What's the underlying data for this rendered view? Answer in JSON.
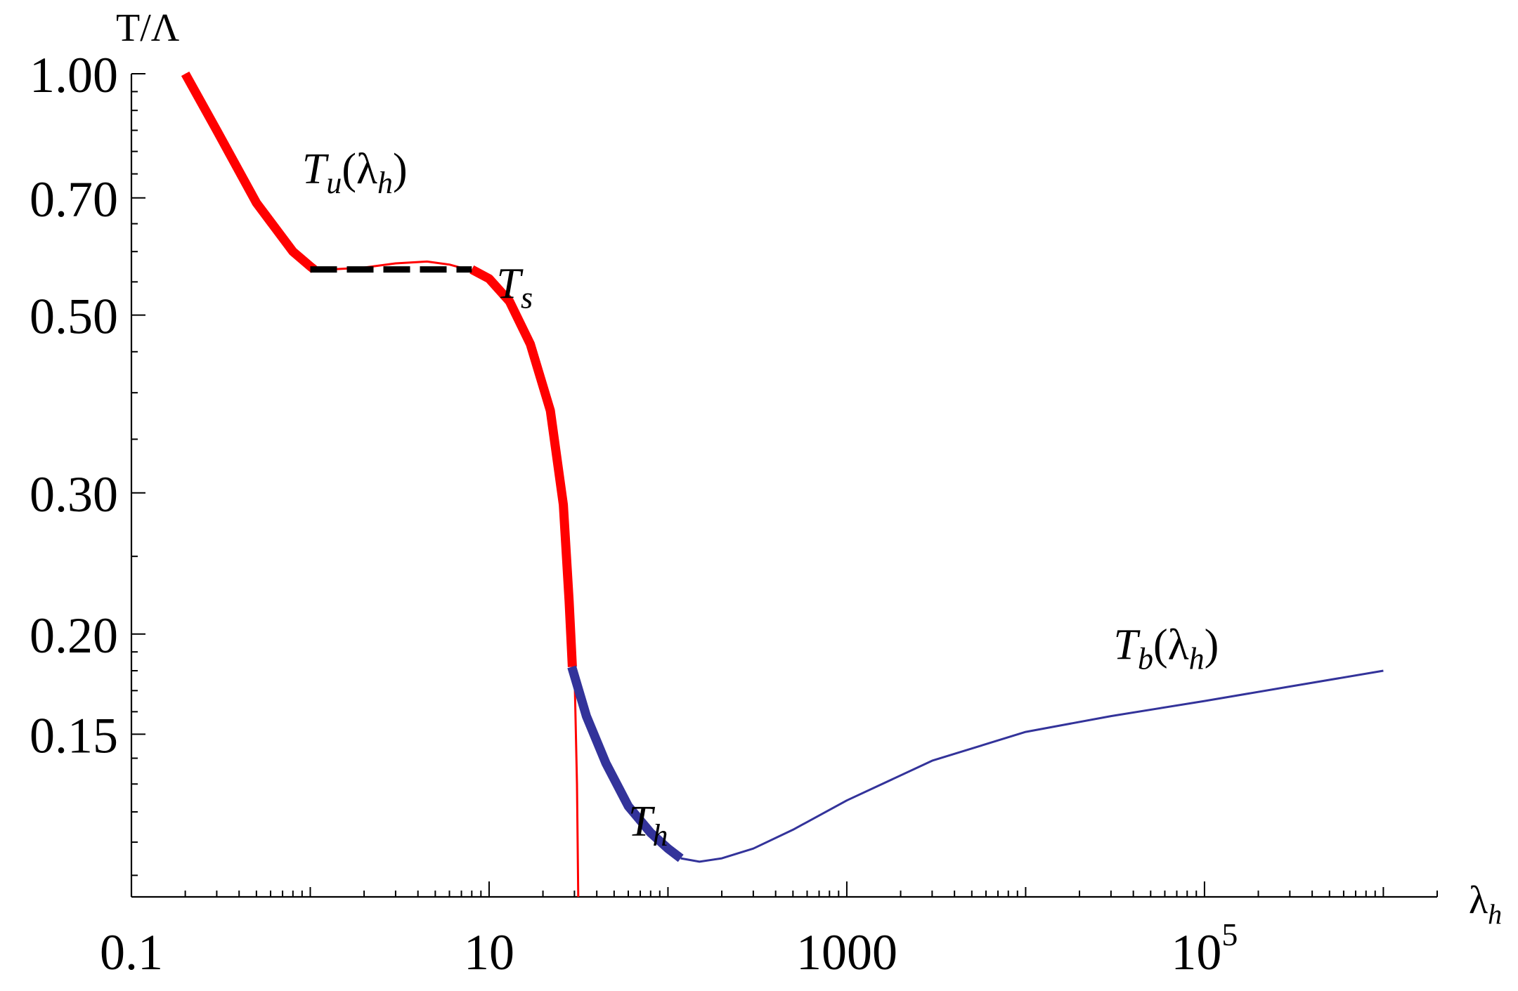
{
  "chart_data": {
    "type": "line",
    "title": "",
    "xlabel": "λ",
    "xlabel_sub": "h",
    "ylabel": "T/Λ",
    "xscale": "log",
    "yscale": "log",
    "xlim": [
      0.1,
      2000000
    ],
    "ylim": [
      0.094,
      1.0
    ],
    "xticks": [
      {
        "value": 0.1,
        "label": "0.1"
      },
      {
        "value": 10,
        "label": "10"
      },
      {
        "value": 1000,
        "label": "1000"
      },
      {
        "value": 100000,
        "base": "10",
        "exp": "5"
      }
    ],
    "yticks": [
      {
        "value": 1.0,
        "label": "1.00"
      },
      {
        "value": 0.7,
        "label": "0.70"
      },
      {
        "value": 0.5,
        "label": "0.50"
      },
      {
        "value": 0.3,
        "label": "0.30"
      },
      {
        "value": 0.2,
        "label": "0.20"
      },
      {
        "value": 0.15,
        "label": "0.15"
      }
    ],
    "series": [
      {
        "name": "T_u(λ_h) thin",
        "color": "#ff0000",
        "style": "thin",
        "x": [
          0.2,
          0.3,
          0.5,
          0.8,
          1.0,
          1.3,
          2.0,
          3.0,
          4.5,
          6.0,
          8.0,
          10.0,
          13.0,
          17.0,
          22.0,
          26.0,
          29.0,
          30.2,
          31.0,
          31.5
        ],
        "y": [
          1.0,
          0.85,
          0.69,
          0.6,
          0.575,
          0.57,
          0.573,
          0.58,
          0.583,
          0.578,
          0.568,
          0.555,
          0.52,
          0.46,
          0.38,
          0.29,
          0.2,
          0.17,
          0.13,
          0.094
        ]
      },
      {
        "name": "T_u(λ_h) thick",
        "color": "#ff0000",
        "style": "thick",
        "x": [
          0.2,
          0.3,
          0.5,
          0.8,
          1.0,
          1.05
        ],
        "y": [
          1.0,
          0.85,
          0.69,
          0.6,
          0.575,
          0.57
        ]
      },
      {
        "name": "T_u(λ_h) thick high-λ",
        "color": "#ff0000",
        "style": "thick",
        "x": [
          8.0,
          10.0,
          13.0,
          17.0,
          22.0,
          26.0,
          28.0,
          29.2
        ],
        "y": [
          0.57,
          0.555,
          0.52,
          0.46,
          0.38,
          0.29,
          0.22,
          0.182
        ]
      },
      {
        "name": "T_h",
        "color": "#33339a",
        "style": "thick",
        "x": [
          29.0,
          35.0,
          45.0,
          60.0,
          80.0,
          100.0,
          118.0
        ],
        "y": [
          0.182,
          0.158,
          0.138,
          0.122,
          0.113,
          0.108,
          0.105
        ]
      },
      {
        "name": "T_b(λ_h)",
        "color": "#33339a",
        "style": "thin",
        "x": [
          118.0,
          150.0,
          200.0,
          300.0,
          500.0,
          1000.0,
          3000.0,
          10000.0,
          30000.0,
          100000.0,
          300000.0,
          1000000.0
        ],
        "y": [
          0.105,
          0.104,
          0.105,
          0.108,
          0.114,
          0.124,
          0.139,
          0.151,
          0.158,
          0.165,
          0.172,
          0.18
        ]
      },
      {
        "name": "T_s",
        "color": "#000000",
        "style": "dashed",
        "x": [
          1.0,
          8.0
        ],
        "y": [
          0.57,
          0.57
        ]
      }
    ],
    "annotations": [
      {
        "id": "tu",
        "base": "T",
        "sub": "u",
        "mid": "(λ",
        "sub2": "h",
        "tail": ")",
        "x": 0.9,
        "y": 0.73
      },
      {
        "id": "ts",
        "base": "T",
        "sub": "s",
        "x": 11.0,
        "y": 0.525
      },
      {
        "id": "th",
        "base": "T",
        "sub": "h",
        "x": 60.0,
        "y": 0.112
      },
      {
        "id": "tb",
        "base": "T",
        "sub": "b",
        "mid": "(λ",
        "sub2": "h",
        "tail": ")",
        "x": 31000.0,
        "y": 0.186
      }
    ]
  }
}
